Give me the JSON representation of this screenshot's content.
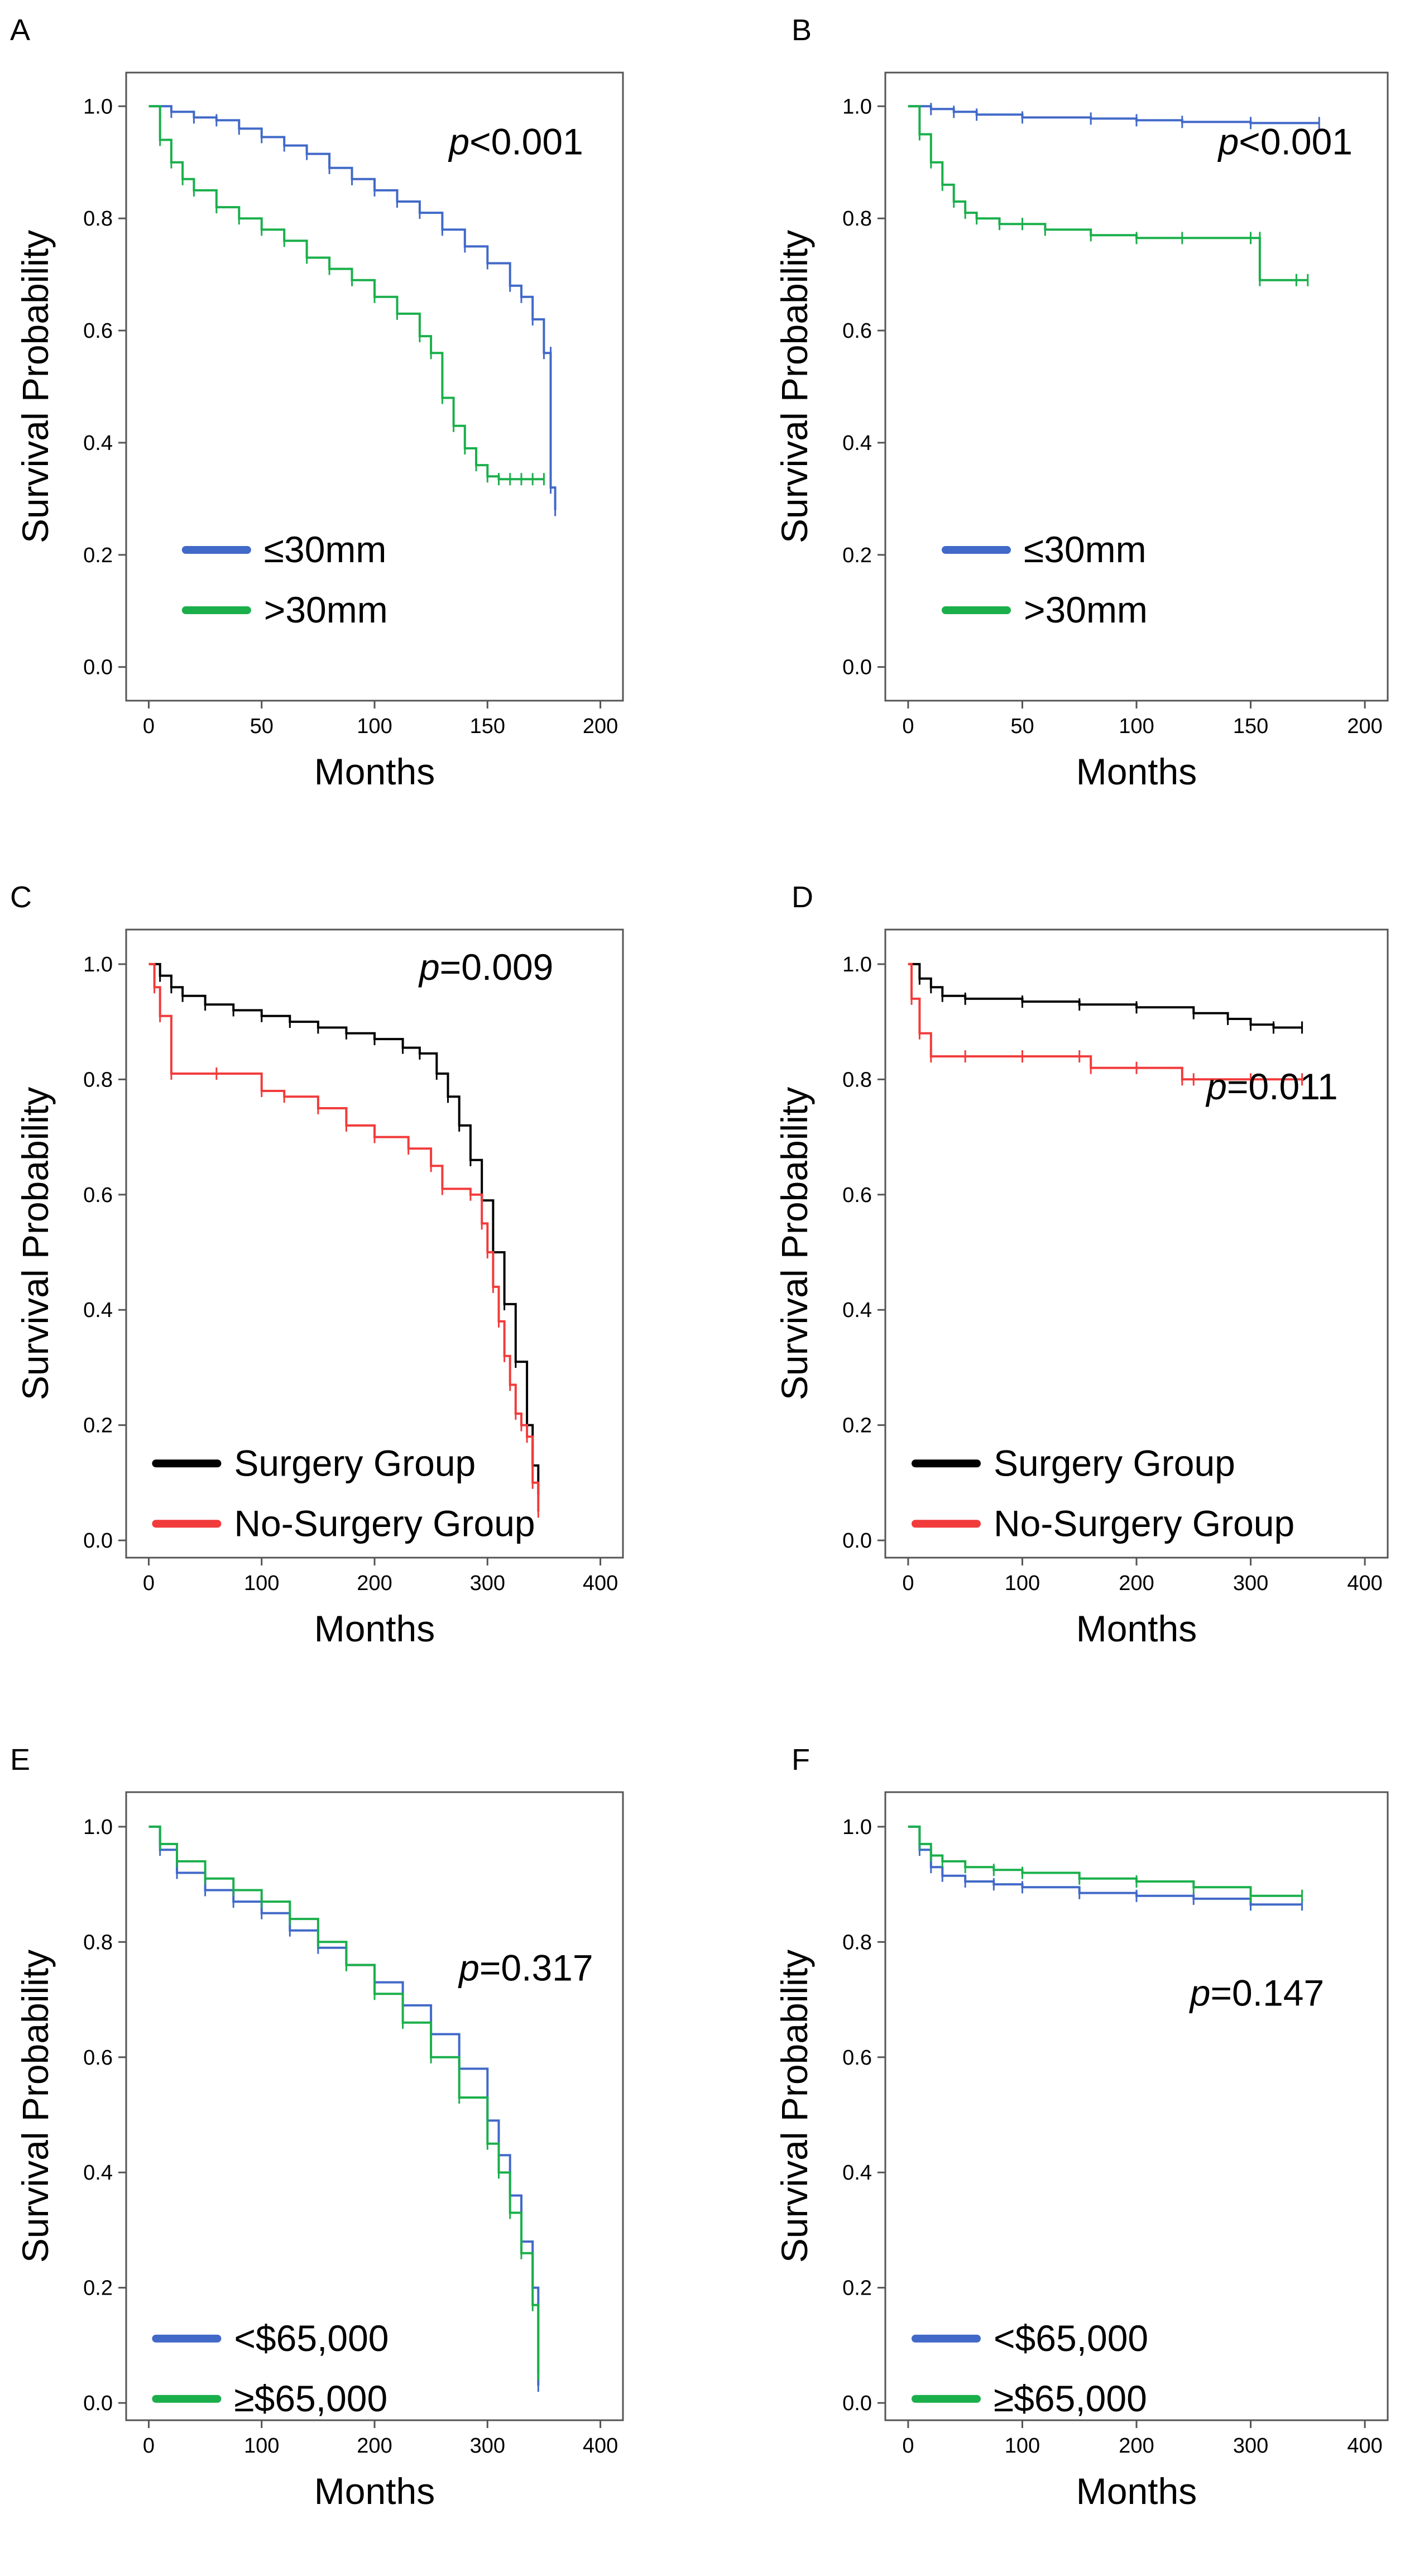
{
  "colors": {
    "blue": "#4169c8",
    "green": "#1aaf4b",
    "black": "#000000",
    "red": "#f23b3b",
    "frame": "#555555"
  },
  "chart_data": [
    {
      "id": "A",
      "type": "line",
      "title": "A",
      "xlabel": "Months",
      "ylabel": "Survival Probability",
      "xlim": [
        -10,
        210
      ],
      "ylim": [
        -0.06,
        1.06
      ],
      "xticks": [
        0,
        50,
        100,
        150,
        200
      ],
      "xtick_labels": [
        "0",
        "50",
        "100",
        "150",
        "200"
      ],
      "yticks": [
        0.0,
        0.2,
        0.4,
        0.6,
        0.8,
        1.0
      ],
      "ytick_labels": [
        "0.0",
        "0.2",
        "0.4",
        "0.6",
        "0.8",
        "1.0"
      ],
      "grid": false,
      "p_prefix": "p",
      "p_rest": "<0.001",
      "legend": "bottom-left",
      "series": [
        {
          "name": "≤30mm",
          "color": "#4169c8",
          "x": [
            0,
            10,
            20,
            30,
            40,
            50,
            60,
            70,
            80,
            90,
            100,
            110,
            120,
            130,
            140,
            150,
            160,
            165,
            170,
            175,
            178,
            178,
            180
          ],
          "y": [
            1.0,
            0.99,
            0.98,
            0.975,
            0.96,
            0.945,
            0.93,
            0.915,
            0.89,
            0.87,
            0.85,
            0.83,
            0.81,
            0.78,
            0.75,
            0.72,
            0.68,
            0.66,
            0.62,
            0.56,
            0.56,
            0.32,
            0.28
          ]
        },
        {
          "name": ">30mm",
          "color": "#1aaf4b",
          "x": [
            0,
            5,
            10,
            15,
            20,
            30,
            40,
            50,
            60,
            70,
            80,
            90,
            100,
            110,
            120,
            125,
            130,
            135,
            140,
            145,
            150,
            155,
            160,
            165,
            170,
            175
          ],
          "y": [
            1.0,
            0.94,
            0.9,
            0.87,
            0.85,
            0.82,
            0.8,
            0.78,
            0.76,
            0.73,
            0.71,
            0.69,
            0.66,
            0.63,
            0.59,
            0.56,
            0.48,
            0.43,
            0.39,
            0.36,
            0.34,
            0.335,
            0.335,
            0.335,
            0.335,
            0.335
          ]
        }
      ]
    },
    {
      "id": "B",
      "type": "line",
      "title": "B",
      "xlabel": "Months",
      "ylabel": "Survival Probability",
      "xlim": [
        -10,
        210
      ],
      "ylim": [
        -0.06,
        1.06
      ],
      "xticks": [
        0,
        50,
        100,
        150,
        200
      ],
      "xtick_labels": [
        "0",
        "50",
        "100",
        "150",
        "200"
      ],
      "yticks": [
        0.0,
        0.2,
        0.4,
        0.6,
        0.8,
        1.0
      ],
      "ytick_labels": [
        "0.0",
        "0.2",
        "0.4",
        "0.6",
        "0.8",
        "1.0"
      ],
      "grid": false,
      "p_prefix": "p",
      "p_rest": "<0.001",
      "legend": "bottom-left",
      "series": [
        {
          "name": "≤30mm",
          "color": "#4169c8",
          "x": [
            0,
            10,
            20,
            30,
            50,
            80,
            100,
            120,
            150,
            180
          ],
          "y": [
            1.0,
            0.995,
            0.99,
            0.985,
            0.98,
            0.978,
            0.975,
            0.972,
            0.97,
            0.97
          ]
        },
        {
          "name": ">30mm",
          "color": "#1aaf4b",
          "x": [
            0,
            5,
            10,
            15,
            20,
            25,
            30,
            40,
            50,
            60,
            80,
            100,
            120,
            150,
            154,
            154,
            170,
            175
          ],
          "y": [
            1.0,
            0.95,
            0.9,
            0.86,
            0.83,
            0.81,
            0.8,
            0.79,
            0.79,
            0.78,
            0.77,
            0.765,
            0.765,
            0.765,
            0.765,
            0.69,
            0.69,
            0.69
          ]
        }
      ]
    },
    {
      "id": "C",
      "type": "line",
      "title": "C",
      "xlabel": "Months",
      "ylabel": "Survival Probability",
      "xlim": [
        -20,
        420
      ],
      "ylim": [
        -0.03,
        1.06
      ],
      "xticks": [
        0,
        100,
        200,
        300,
        400
      ],
      "xtick_labels": [
        "0",
        "100",
        "200",
        "300",
        "400"
      ],
      "yticks": [
        0.0,
        0.2,
        0.4,
        0.6,
        0.8,
        1.0
      ],
      "ytick_labels": [
        "0.0",
        "0.2",
        "0.4",
        "0.6",
        "0.8",
        "1.0"
      ],
      "grid": false,
      "p_prefix": "p",
      "p_rest": "=0.009",
      "legend": "bottom-left",
      "series": [
        {
          "name": "Surgery Group",
          "color": "#000000",
          "x": [
            0,
            10,
            20,
            30,
            50,
            75,
            100,
            125,
            150,
            175,
            200,
            225,
            240,
            255,
            265,
            275,
            285,
            295,
            305,
            315,
            325,
            335,
            340,
            345
          ],
          "y": [
            1.0,
            0.98,
            0.96,
            0.945,
            0.93,
            0.92,
            0.91,
            0.9,
            0.89,
            0.88,
            0.87,
            0.855,
            0.845,
            0.81,
            0.77,
            0.72,
            0.66,
            0.59,
            0.5,
            0.41,
            0.31,
            0.2,
            0.13,
            0.08
          ]
        },
        {
          "name": "No-Surgery Group",
          "color": "#f23b3b",
          "x": [
            0,
            5,
            10,
            20,
            60,
            100,
            120,
            150,
            175,
            200,
            230,
            250,
            260,
            285,
            295,
            300,
            305,
            310,
            315,
            320,
            325,
            330,
            335,
            340,
            345
          ],
          "y": [
            1.0,
            0.96,
            0.91,
            0.81,
            0.81,
            0.78,
            0.77,
            0.75,
            0.72,
            0.7,
            0.68,
            0.65,
            0.61,
            0.6,
            0.55,
            0.5,
            0.44,
            0.38,
            0.32,
            0.27,
            0.22,
            0.2,
            0.18,
            0.1,
            0.05
          ]
        }
      ]
    },
    {
      "id": "D",
      "type": "line",
      "title": "D",
      "xlabel": "Months",
      "ylabel": "Survival Probability",
      "xlim": [
        -20,
        420
      ],
      "ylim": [
        -0.03,
        1.06
      ],
      "xticks": [
        0,
        100,
        200,
        300,
        400
      ],
      "xtick_labels": [
        "0",
        "100",
        "200",
        "300",
        "400"
      ],
      "yticks": [
        0.0,
        0.2,
        0.4,
        0.6,
        0.8,
        1.0
      ],
      "ytick_labels": [
        "0.0",
        "0.2",
        "0.4",
        "0.6",
        "0.8",
        "1.0"
      ],
      "grid": false,
      "p_prefix": "p",
      "p_rest": "=0.011",
      "legend": "bottom-left",
      "series": [
        {
          "name": "Surgery Group",
          "color": "#000000",
          "x": [
            0,
            10,
            20,
            30,
            50,
            100,
            150,
            200,
            250,
            280,
            300,
            320,
            345
          ],
          "y": [
            1.0,
            0.975,
            0.96,
            0.945,
            0.94,
            0.935,
            0.93,
            0.925,
            0.915,
            0.905,
            0.895,
            0.89,
            0.89
          ]
        },
        {
          "name": "No-Surgery Group",
          "color": "#f23b3b",
          "x": [
            0,
            3,
            10,
            20,
            50,
            100,
            150,
            160,
            200,
            240,
            250,
            300,
            345
          ],
          "y": [
            1.0,
            0.94,
            0.88,
            0.84,
            0.84,
            0.84,
            0.84,
            0.82,
            0.82,
            0.8,
            0.8,
            0.8,
            0.8
          ]
        }
      ]
    },
    {
      "id": "E",
      "type": "line",
      "title": "E",
      "xlabel": "Months",
      "ylabel": "Survival Probability",
      "xlim": [
        -20,
        420
      ],
      "ylim": [
        -0.03,
        1.06
      ],
      "xticks": [
        0,
        100,
        200,
        300,
        400
      ],
      "xtick_labels": [
        "0",
        "100",
        "200",
        "300",
        "400"
      ],
      "yticks": [
        0.0,
        0.2,
        0.4,
        0.6,
        0.8,
        1.0
      ],
      "ytick_labels": [
        "0.0",
        "0.2",
        "0.4",
        "0.6",
        "0.8",
        "1.0"
      ],
      "grid": false,
      "p_prefix": "p",
      "p_rest": "=0.317",
      "legend": "bottom-left",
      "series": [
        {
          "name": "<$65,000",
          "color": "#4169c8",
          "x": [
            0,
            10,
            25,
            50,
            75,
            100,
            125,
            150,
            175,
            200,
            225,
            250,
            275,
            300,
            310,
            320,
            330,
            340,
            345
          ],
          "y": [
            1.0,
            0.96,
            0.92,
            0.89,
            0.87,
            0.85,
            0.82,
            0.79,
            0.76,
            0.73,
            0.69,
            0.64,
            0.58,
            0.49,
            0.43,
            0.36,
            0.28,
            0.2,
            0.03
          ]
        },
        {
          "name": "≥$65,000",
          "color": "#1aaf4b",
          "x": [
            0,
            10,
            25,
            50,
            75,
            100,
            125,
            150,
            175,
            200,
            225,
            250,
            275,
            300,
            310,
            320,
            330,
            340,
            345
          ],
          "y": [
            1.0,
            0.97,
            0.94,
            0.91,
            0.89,
            0.87,
            0.84,
            0.8,
            0.76,
            0.71,
            0.66,
            0.6,
            0.53,
            0.45,
            0.4,
            0.33,
            0.26,
            0.17,
            0.05
          ]
        }
      ]
    },
    {
      "id": "F",
      "type": "line",
      "title": "F",
      "xlabel": "Months",
      "ylabel": "Survival Probability",
      "xlim": [
        -20,
        420
      ],
      "ylim": [
        -0.03,
        1.06
      ],
      "xticks": [
        0,
        100,
        200,
        300,
        400
      ],
      "xtick_labels": [
        "0",
        "100",
        "200",
        "300",
        "400"
      ],
      "yticks": [
        0.0,
        0.2,
        0.4,
        0.6,
        0.8,
        1.0
      ],
      "ytick_labels": [
        "0.0",
        "0.2",
        "0.4",
        "0.6",
        "0.8",
        "1.0"
      ],
      "grid": false,
      "p_prefix": "p",
      "p_rest": "=0.147",
      "legend": "bottom-left",
      "series": [
        {
          "name": "<$65,000",
          "color": "#4169c8",
          "x": [
            0,
            10,
            20,
            30,
            50,
            75,
            100,
            150,
            200,
            250,
            300,
            345
          ],
          "y": [
            1.0,
            0.96,
            0.93,
            0.915,
            0.905,
            0.9,
            0.895,
            0.885,
            0.88,
            0.875,
            0.865,
            0.865
          ]
        },
        {
          "name": "≥$65,000",
          "color": "#1aaf4b",
          "x": [
            0,
            10,
            20,
            30,
            50,
            75,
            100,
            150,
            200,
            250,
            300,
            345
          ],
          "y": [
            1.0,
            0.97,
            0.95,
            0.94,
            0.93,
            0.925,
            0.92,
            0.91,
            0.905,
            0.895,
            0.88,
            0.88
          ]
        }
      ]
    }
  ]
}
